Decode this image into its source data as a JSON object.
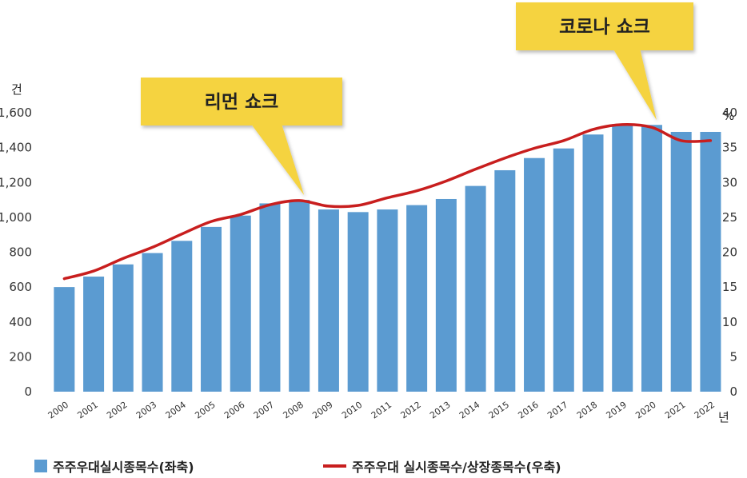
{
  "chart_data": {
    "type": "bar",
    "categories": [
      "2000",
      "2001",
      "2002",
      "2003",
      "2004",
      "2005",
      "2006",
      "2007",
      "2008",
      "2009",
      "2010",
      "2011",
      "2012",
      "2013",
      "2014",
      "2015",
      "2016",
      "2017",
      "2018",
      "2019",
      "2020",
      "2021",
      "2022"
    ],
    "series": [
      {
        "name": "주주우대실시종목수(좌축)",
        "type": "bar",
        "axis": "left",
        "color": "#5b9bd1",
        "values": [
          600,
          660,
          730,
          795,
          865,
          945,
          1010,
          1080,
          1100,
          1045,
          1030,
          1045,
          1070,
          1105,
          1180,
          1270,
          1340,
          1395,
          1475,
          1535,
          1530,
          1490,
          1490
        ]
      },
      {
        "name": "주주우대 실시종목수/상장종목수(우축)",
        "type": "line",
        "axis": "right",
        "color": "#c81e1e",
        "values": [
          16.2,
          17.3,
          19.1,
          20.7,
          22.6,
          24.4,
          25.4,
          26.8,
          27.4,
          26.6,
          26.7,
          27.8,
          28.8,
          30.2,
          31.9,
          33.5,
          34.9,
          36.0,
          37.6,
          38.3,
          37.9,
          36.0,
          36.0
        ]
      }
    ],
    "y_left": {
      "unit": "건",
      "ylim": [
        0,
        1600
      ],
      "ticks": [
        0,
        200,
        400,
        600,
        800,
        1000,
        1200,
        1400,
        1600
      ],
      "tick_labels": [
        "0",
        "200",
        "400",
        "600",
        "800",
        "1,000",
        "1,200",
        "1,400",
        "1,600"
      ]
    },
    "y_right": {
      "unit": "%",
      "ylim": [
        0,
        40
      ],
      "ticks": [
        0,
        5,
        10,
        15,
        20,
        25,
        30,
        35,
        40
      ],
      "tick_labels": [
        "0",
        "5",
        "10",
        "15",
        "20",
        "25",
        "30",
        "35",
        "40"
      ]
    },
    "x_unit": "년",
    "annotations": [
      {
        "text": "리먼 쇼크",
        "category": "2008",
        "color": "#f5d33f"
      },
      {
        "text": "코로나 쇼크",
        "category": "2020",
        "color": "#f5d33f"
      }
    ],
    "grid": false,
    "legend": "bottom"
  }
}
